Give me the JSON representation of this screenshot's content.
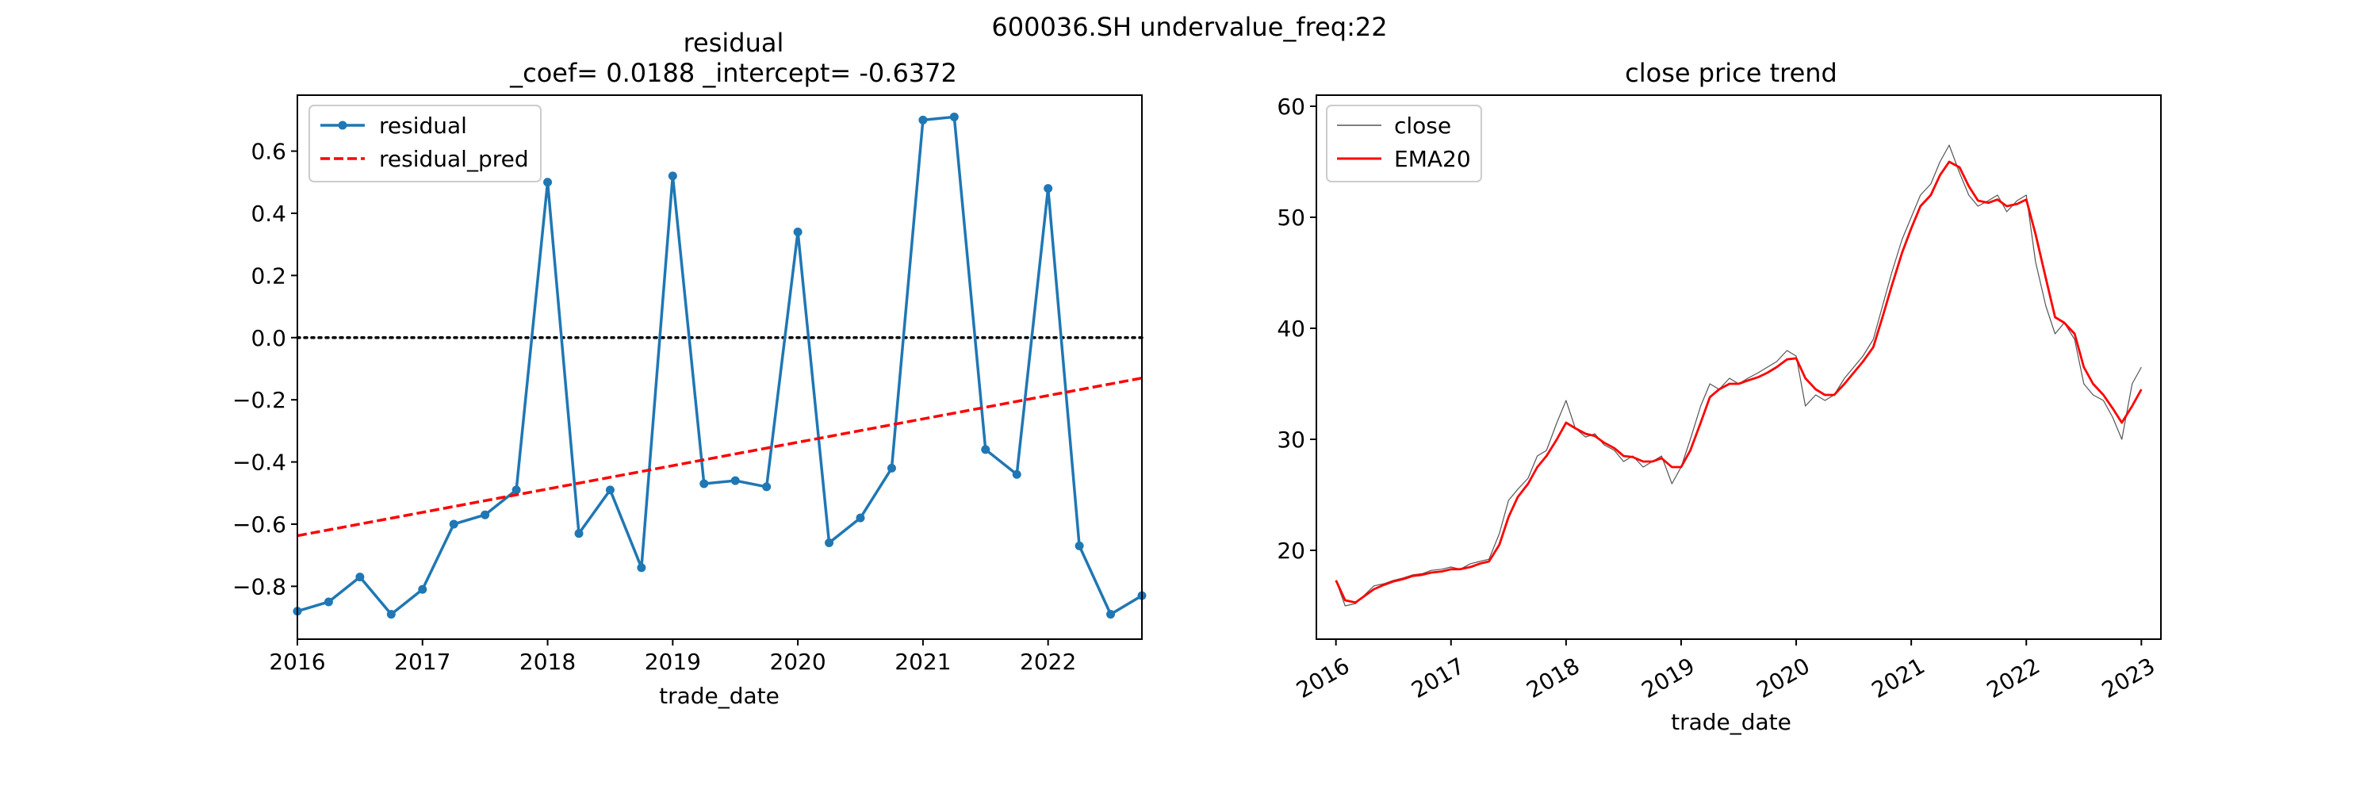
{
  "suptitle": "600036.SH undervalue_freq:22",
  "chart_data": [
    {
      "type": "line",
      "title": "residual",
      "subtitle": "_coef= 0.0188   _intercept= -0.6372",
      "xlabel": "trade_date",
      "ylabel": "",
      "xlim": [
        2016.0,
        2022.75
      ],
      "ylim": [
        -0.97,
        0.78
      ],
      "xticks": [
        2016,
        2017,
        2018,
        2019,
        2020,
        2021,
        2022
      ],
      "xtick_labels": [
        "2016",
        "2017",
        "2018",
        "2019",
        "2020",
        "2021",
        "2022"
      ],
      "yticks": [
        -0.8,
        -0.6,
        -0.4,
        -0.2,
        0.0,
        0.2,
        0.4,
        0.6
      ],
      "ytick_labels": [
        "−0.8",
        "−0.6",
        "−0.4",
        "−0.2",
        "0.0",
        "0.2",
        "0.4",
        "0.6"
      ],
      "hline": 0.0,
      "legend_position": "top-left",
      "series": [
        {
          "name": "residual",
          "style": "line-with-markers",
          "color": "#1f77b4",
          "x": [
            2016.0,
            2016.25,
            2016.5,
            2016.75,
            2017.0,
            2017.25,
            2017.5,
            2017.75,
            2018.0,
            2018.25,
            2018.5,
            2018.75,
            2019.0,
            2019.25,
            2019.5,
            2019.75,
            2020.0,
            2020.25,
            2020.5,
            2020.75,
            2021.0,
            2021.25,
            2021.5,
            2021.75,
            2022.0,
            2022.25,
            2022.5,
            2022.75
          ],
          "values": [
            -0.88,
            -0.85,
            -0.77,
            -0.89,
            -0.81,
            -0.6,
            -0.57,
            -0.49,
            0.5,
            -0.63,
            -0.49,
            -0.74,
            0.52,
            -0.47,
            -0.46,
            -0.48,
            0.34,
            -0.66,
            -0.58,
            -0.42,
            0.7,
            0.71,
            -0.36,
            -0.44,
            0.48,
            -0.67,
            -0.89,
            -0.83
          ]
        },
        {
          "name": "residual_pred",
          "style": "dashed",
          "color": "#ff0000",
          "x": [
            2016.0,
            2022.75
          ],
          "values": [
            -0.6372,
            -0.13
          ]
        }
      ]
    },
    {
      "type": "line",
      "title": "close price trend",
      "xlabel": "trade_date",
      "ylabel": "",
      "xlim": [
        2015.83,
        2023.17
      ],
      "ylim": [
        12,
        61
      ],
      "xticks": [
        2016,
        2017,
        2018,
        2019,
        2020,
        2021,
        2022,
        2023
      ],
      "xtick_labels": [
        "2016",
        "2017",
        "2018",
        "2019",
        "2020",
        "2021",
        "2022",
        "2023"
      ],
      "yticks": [
        20,
        30,
        40,
        50,
        60
      ],
      "ytick_labels": [
        "20",
        "30",
        "40",
        "50",
        "60"
      ],
      "legend_position": "top-left",
      "series": [
        {
          "name": "close",
          "color": "#555555",
          "x": [
            2016.0,
            2016.08,
            2016.17,
            2016.25,
            2016.33,
            2016.42,
            2016.5,
            2016.58,
            2016.67,
            2016.75,
            2016.83,
            2016.92,
            2017.0,
            2017.08,
            2017.17,
            2017.25,
            2017.33,
            2017.42,
            2017.5,
            2017.58,
            2017.67,
            2017.75,
            2017.83,
            2017.92,
            2018.0,
            2018.08,
            2018.17,
            2018.25,
            2018.33,
            2018.42,
            2018.5,
            2018.58,
            2018.67,
            2018.75,
            2018.83,
            2018.92,
            2019.0,
            2019.08,
            2019.17,
            2019.25,
            2019.33,
            2019.42,
            2019.5,
            2019.58,
            2019.67,
            2019.75,
            2019.83,
            2019.92,
            2020.0,
            2020.08,
            2020.17,
            2020.25,
            2020.33,
            2020.42,
            2020.5,
            2020.58,
            2020.67,
            2020.75,
            2020.83,
            2020.92,
            2021.0,
            2021.08,
            2021.17,
            2021.25,
            2021.33,
            2021.42,
            2021.5,
            2021.58,
            2021.67,
            2021.75,
            2021.83,
            2021.92,
            2022.0,
            2022.08,
            2022.17,
            2022.25,
            2022.33,
            2022.42,
            2022.5,
            2022.58,
            2022.67,
            2022.75,
            2022.83,
            2022.92,
            2023.0
          ],
          "values": [
            17.3,
            15.0,
            15.2,
            16.0,
            16.8,
            17.0,
            17.3,
            17.5,
            17.8,
            17.9,
            18.2,
            18.3,
            18.5,
            18.3,
            18.8,
            19.0,
            19.2,
            21.5,
            24.5,
            25.5,
            26.5,
            28.5,
            29.0,
            31.5,
            33.5,
            31.0,
            30.2,
            30.5,
            29.5,
            29.0,
            28.0,
            28.5,
            27.5,
            28.0,
            28.5,
            26.0,
            27.5,
            30.0,
            33.0,
            35.0,
            34.5,
            35.5,
            35.0,
            35.5,
            36.0,
            36.5,
            37.0,
            38.0,
            37.5,
            33.0,
            34.0,
            33.5,
            34.0,
            35.5,
            36.5,
            37.5,
            39.0,
            42.0,
            45.0,
            48.0,
            50.0,
            52.0,
            53.0,
            55.0,
            56.5,
            54.0,
            52.0,
            51.0,
            51.5,
            52.0,
            50.5,
            51.5,
            52.0,
            46.0,
            42.0,
            39.5,
            40.5,
            39.0,
            35.0,
            34.0,
            33.5,
            32.0,
            30.0,
            35.0,
            36.5
          ]
        },
        {
          "name": "EMA20",
          "color": "#ff0000",
          "x": [
            2016.0,
            2016.08,
            2016.17,
            2016.25,
            2016.33,
            2016.42,
            2016.5,
            2016.58,
            2016.67,
            2016.75,
            2016.83,
            2016.92,
            2017.0,
            2017.08,
            2017.17,
            2017.25,
            2017.33,
            2017.42,
            2017.5,
            2017.58,
            2017.67,
            2017.75,
            2017.83,
            2017.92,
            2018.0,
            2018.08,
            2018.17,
            2018.25,
            2018.33,
            2018.42,
            2018.5,
            2018.58,
            2018.67,
            2018.75,
            2018.83,
            2018.92,
            2019.0,
            2019.08,
            2019.17,
            2019.25,
            2019.33,
            2019.42,
            2019.5,
            2019.58,
            2019.67,
            2019.75,
            2019.83,
            2019.92,
            2020.0,
            2020.08,
            2020.17,
            2020.25,
            2020.33,
            2020.42,
            2020.5,
            2020.58,
            2020.67,
            2020.75,
            2020.83,
            2020.92,
            2021.0,
            2021.08,
            2021.17,
            2021.25,
            2021.33,
            2021.42,
            2021.5,
            2021.58,
            2021.67,
            2021.75,
            2021.83,
            2021.92,
            2022.0,
            2022.08,
            2022.17,
            2022.25,
            2022.33,
            2022.42,
            2022.5,
            2022.58,
            2022.67,
            2022.75,
            2022.83,
            2022.92,
            2023.0
          ],
          "values": [
            17.3,
            15.5,
            15.3,
            15.9,
            16.5,
            16.9,
            17.2,
            17.4,
            17.7,
            17.8,
            18.0,
            18.1,
            18.3,
            18.3,
            18.5,
            18.8,
            19.0,
            20.5,
            23.0,
            24.8,
            26.0,
            27.5,
            28.5,
            30.0,
            31.5,
            31.0,
            30.5,
            30.3,
            29.7,
            29.2,
            28.5,
            28.4,
            28.0,
            28.0,
            28.3,
            27.5,
            27.5,
            29.0,
            31.5,
            33.8,
            34.5,
            35.0,
            35.0,
            35.3,
            35.6,
            36.0,
            36.5,
            37.2,
            37.3,
            35.5,
            34.5,
            34.0,
            34.0,
            35.0,
            36.0,
            37.0,
            38.3,
            41.0,
            43.8,
            46.8,
            49.0,
            51.0,
            52.0,
            53.8,
            55.0,
            54.5,
            52.8,
            51.5,
            51.3,
            51.6,
            51.0,
            51.2,
            51.6,
            48.5,
            44.5,
            41.0,
            40.5,
            39.5,
            36.5,
            35.0,
            34.0,
            32.8,
            31.5,
            33.0,
            34.5
          ]
        }
      ]
    }
  ]
}
